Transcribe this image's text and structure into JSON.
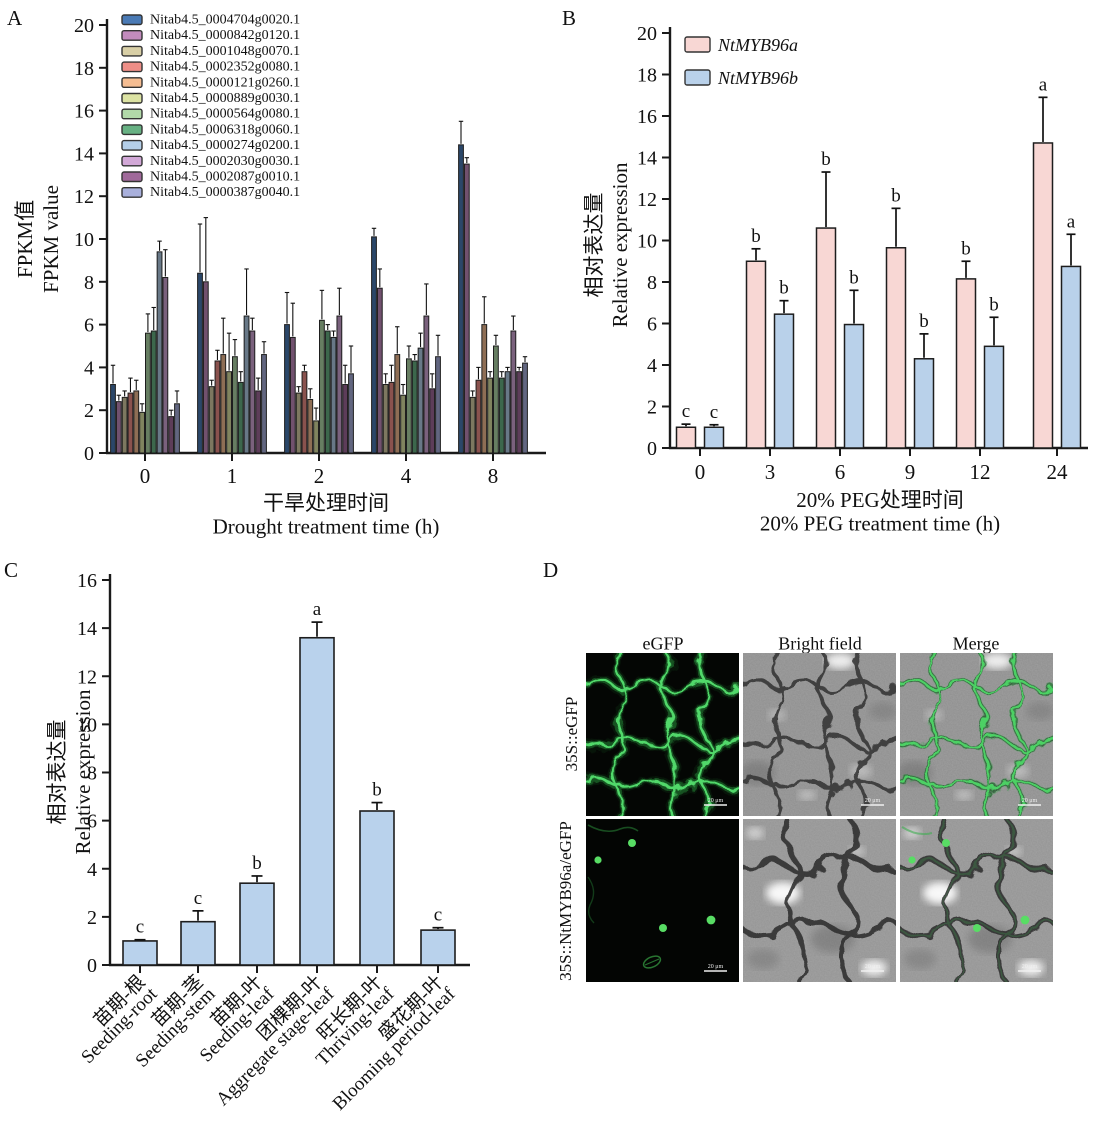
{
  "panels": {
    "a": "A",
    "b": "B",
    "c": "C",
    "d": "D"
  },
  "chart_data": [
    {
      "panel": "A",
      "type": "bar",
      "title": "",
      "xlabel_zh": "干旱处理时间",
      "xlabel_en": "Drought treatment time (h)",
      "ylabel_zh": "FPKM值",
      "ylabel_en": "FPKM value",
      "ylim": [
        0,
        20
      ],
      "ytick_step": 2,
      "grid": false,
      "legend_position": "top-left-inside",
      "categories": [
        "0",
        "1",
        "2",
        "4",
        "8"
      ],
      "series": [
        {
          "name": "Nitab4.5_0004704g0020.1",
          "color": "#4a7ab5",
          "values": [
            3.2,
            8.4,
            6.0,
            10.1,
            14.4
          ],
          "errors": [
            0.9,
            2.3,
            1.5,
            0.4,
            1.1
          ]
        },
        {
          "name": "Nitab4.5_0000842g0120.1",
          "color": "#c28bbd",
          "values": [
            2.4,
            8.0,
            5.4,
            7.7,
            13.5
          ],
          "errors": [
            0.3,
            3.0,
            1.6,
            0.9,
            0.3
          ]
        },
        {
          "name": "Nitab4.5_0001048g0070.1",
          "color": "#d8cfa6",
          "values": [
            2.6,
            3.1,
            2.8,
            3.2,
            2.6
          ],
          "errors": [
            0.3,
            0.3,
            0.3,
            0.5,
            0.3
          ]
        },
        {
          "name": "Nitab4.5_0002352g0080.1",
          "color": "#ee8e87",
          "values": [
            2.8,
            4.3,
            3.8,
            3.3,
            3.4
          ],
          "errors": [
            0.7,
            0.5,
            0.3,
            0.8,
            0.6
          ]
        },
        {
          "name": "Nitab4.5_0000121g0260.1",
          "color": "#f5bd92",
          "values": [
            2.9,
            4.6,
            2.5,
            4.6,
            6.0
          ],
          "errors": [
            0.5,
            1.7,
            0.5,
            1.3,
            1.3
          ]
        },
        {
          "name": "Nitab4.5_0000889g0030.1",
          "color": "#dce3a3",
          "values": [
            1.9,
            3.8,
            1.5,
            2.7,
            3.5
          ],
          "errors": [
            0.4,
            1.8,
            0.6,
            0.5,
            0.3
          ]
        },
        {
          "name": "Nitab4.5_0000564g0080.1",
          "color": "#b2d9a9",
          "values": [
            5.6,
            4.5,
            6.2,
            4.4,
            5.0
          ],
          "errors": [
            0.9,
            0.8,
            1.4,
            0.6,
            0.5
          ]
        },
        {
          "name": "Nitab4.5_0006318g0060.1",
          "color": "#67b183",
          "values": [
            5.7,
            3.3,
            5.7,
            4.3,
            3.5
          ],
          "errors": [
            1.1,
            0.5,
            0.3,
            0.3,
            0.3
          ]
        },
        {
          "name": "Nitab4.5_0000274g0200.1",
          "color": "#b4cfe9",
          "values": [
            9.4,
            6.4,
            5.4,
            4.9,
            3.8
          ],
          "errors": [
            0.5,
            2.2,
            0.3,
            0.7,
            0.2
          ]
        },
        {
          "name": "Nitab4.5_0002030g0030.1",
          "color": "#d2a8d7",
          "values": [
            8.2,
            5.7,
            6.4,
            6.4,
            5.7
          ],
          "errors": [
            1.3,
            0.6,
            1.3,
            1.5,
            0.7
          ]
        },
        {
          "name": "Nitab4.5_0002087g0010.1",
          "color": "#a0699a",
          "values": [
            1.7,
            2.9,
            3.2,
            3.0,
            3.8
          ],
          "errors": [
            0.3,
            0.6,
            0.9,
            0.7,
            0.2
          ]
        },
        {
          "name": "Nitab4.5_0000387g0040.1",
          "color": "#a9b0dc",
          "values": [
            2.3,
            4.6,
            3.7,
            4.5,
            4.2
          ],
          "errors": [
            0.6,
            0.6,
            1.3,
            1.0,
            0.3
          ]
        }
      ]
    },
    {
      "panel": "B",
      "type": "bar",
      "title": "",
      "xlabel_zh": "20% PEG处理时间",
      "xlabel_en": "20% PEG treatment time (h)",
      "ylabel_zh": "相对表达量",
      "ylabel_en": "Relative expression",
      "ylim": [
        0,
        20
      ],
      "ytick_step": 2,
      "grid": false,
      "legend_position": "top-left-inside",
      "categories": [
        "0",
        "3",
        "6",
        "9",
        "12",
        "24"
      ],
      "series": [
        {
          "name": "NtMYB96a",
          "color": "#f8d7d4",
          "values": [
            1.0,
            9.0,
            10.6,
            9.65,
            8.15,
            14.7
          ],
          "errors": [
            0.15,
            0.6,
            2.7,
            1.9,
            0.85,
            2.2
          ],
          "letters": [
            "c",
            "b",
            "b",
            "b",
            "b",
            "a"
          ]
        },
        {
          "name": "NtMYB96b",
          "color": "#b9d1ea",
          "values": [
            1.0,
            6.45,
            5.95,
            4.3,
            4.9,
            8.75
          ],
          "errors": [
            0.12,
            0.65,
            1.65,
            1.2,
            1.4,
            1.55
          ],
          "letters": [
            "c",
            "b",
            "b",
            "b",
            "b",
            "a"
          ]
        }
      ]
    },
    {
      "panel": "C",
      "type": "bar",
      "title": "",
      "xlabel_zh": "",
      "xlabel_en": "",
      "ylabel_zh": "相对表达量",
      "ylabel_en": "Relative expression",
      "ylim": [
        0,
        16
      ],
      "ytick_step": 2,
      "grid": false,
      "legend_position": "none",
      "categories": [
        {
          "zh": "苗期-根",
          "en": "Seeding-root"
        },
        {
          "zh": "苗期-茎",
          "en": "Seeding-stem"
        },
        {
          "zh": "苗期-叶",
          "en": "Seeding-leaf"
        },
        {
          "zh": "团棵期-叶",
          "en": "Aggregate stage-leaf"
        },
        {
          "zh": "旺长期-叶",
          "en": "Thriving-leaf"
        },
        {
          "zh": "盛花期-叶",
          "en": "Blooming period-leaf"
        }
      ],
      "series": [
        {
          "name": "",
          "color": "#b9d2ec",
          "values": [
            1.0,
            1.8,
            3.4,
            13.6,
            6.4,
            1.45
          ],
          "errors": [
            0.05,
            0.45,
            0.3,
            0.65,
            0.35,
            0.1
          ],
          "letters": [
            "c",
            "c",
            "b",
            "a",
            "b",
            "c"
          ]
        }
      ]
    }
  ],
  "panel_d": {
    "col_headers": [
      "eGFP",
      "Bright field",
      "Merge"
    ],
    "row_labels": [
      "35S::eGFP",
      "35S::NtMYB96a/eGFP"
    ],
    "scale_label": "20 μm",
    "gfp_color": "#4fdd68"
  }
}
